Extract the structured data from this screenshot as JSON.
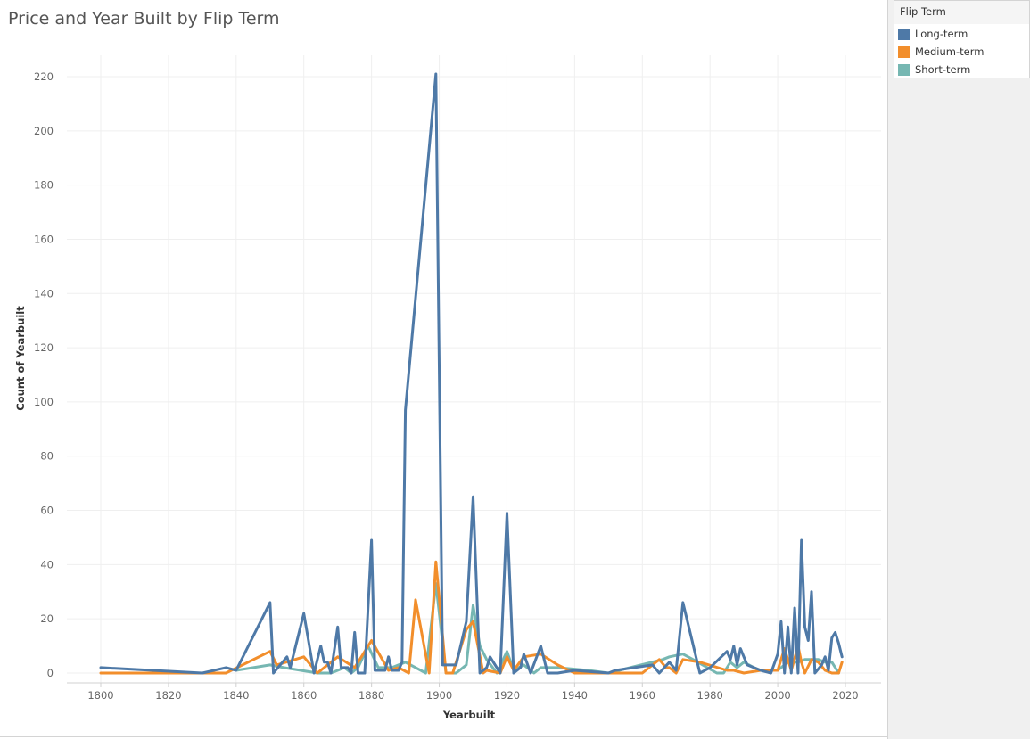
{
  "chart_data": {
    "type": "line",
    "title": "Price and Year Built by Flip Term",
    "xlabel": "Yearbuilt",
    "ylabel": "Count of Yearbuilt",
    "xlim": [
      1788,
      2029
    ],
    "ylim": [
      -3,
      225
    ],
    "xticks": [
      1800,
      1820,
      1840,
      1860,
      1880,
      1900,
      1920,
      1940,
      1960,
      1980,
      2000,
      2020
    ],
    "yticks": [
      0,
      20,
      40,
      60,
      80,
      100,
      120,
      140,
      160,
      180,
      200,
      220
    ],
    "grid": true,
    "legend_title": "Flip Term",
    "legend_position": "right",
    "series": [
      {
        "name": "Long-term",
        "color": "#4e79a7",
        "points": [
          [
            1800,
            2
          ],
          [
            1830,
            0
          ],
          [
            1837,
            2
          ],
          [
            1840,
            1
          ],
          [
            1850,
            26
          ],
          [
            1851,
            0
          ],
          [
            1855,
            6
          ],
          [
            1856,
            2
          ],
          [
            1860,
            22
          ],
          [
            1863,
            0
          ],
          [
            1865,
            10
          ],
          [
            1866,
            4
          ],
          [
            1867,
            4
          ],
          [
            1868,
            0
          ],
          [
            1870,
            17
          ],
          [
            1871,
            2
          ],
          [
            1873,
            2
          ],
          [
            1874,
            0
          ],
          [
            1875,
            15
          ],
          [
            1876,
            0
          ],
          [
            1878,
            0
          ],
          [
            1880,
            49
          ],
          [
            1881,
            1
          ],
          [
            1884,
            1
          ],
          [
            1885,
            6
          ],
          [
            1886,
            1
          ],
          [
            1888,
            1
          ],
          [
            1889,
            4
          ],
          [
            1890,
            97
          ],
          [
            1899,
            221
          ],
          [
            1901,
            3
          ],
          [
            1905,
            3
          ],
          [
            1908,
            19
          ],
          [
            1910,
            65
          ],
          [
            1912,
            0
          ],
          [
            1914,
            2
          ],
          [
            1915,
            6
          ],
          [
            1917,
            2
          ],
          [
            1918,
            0
          ],
          [
            1920,
            59
          ],
          [
            1922,
            0
          ],
          [
            1924,
            2
          ],
          [
            1925,
            7
          ],
          [
            1927,
            0
          ],
          [
            1930,
            10
          ],
          [
            1932,
            0
          ],
          [
            1935,
            0
          ],
          [
            1940,
            1
          ],
          [
            1950,
            0
          ],
          [
            1952,
            1
          ],
          [
            1963,
            3
          ],
          [
            1965,
            0
          ],
          [
            1968,
            4
          ],
          [
            1970,
            1
          ],
          [
            1972,
            26
          ],
          [
            1977,
            0
          ],
          [
            1980,
            2
          ],
          [
            1985,
            8
          ],
          [
            1986,
            5
          ],
          [
            1987,
            10
          ],
          [
            1988,
            3
          ],
          [
            1989,
            9
          ],
          [
            1990,
            6
          ],
          [
            1991,
            3
          ],
          [
            1995,
            1
          ],
          [
            1998,
            0
          ],
          [
            2000,
            7
          ],
          [
            2001,
            19
          ],
          [
            2002,
            0
          ],
          [
            2003,
            17
          ],
          [
            2004,
            0
          ],
          [
            2005,
            24
          ],
          [
            2006,
            0
          ],
          [
            2007,
            49
          ],
          [
            2008,
            17
          ],
          [
            2009,
            12
          ],
          [
            2010,
            30
          ],
          [
            2011,
            0
          ],
          [
            2013,
            3
          ],
          [
            2014,
            6
          ],
          [
            2015,
            1
          ],
          [
            2016,
            13
          ],
          [
            2017,
            15
          ],
          [
            2018,
            11
          ],
          [
            2019,
            6
          ]
        ]
      },
      {
        "name": "Medium-term",
        "color": "#f28e2b",
        "points": [
          [
            1800,
            0
          ],
          [
            1837,
            0
          ],
          [
            1850,
            8
          ],
          [
            1852,
            3
          ],
          [
            1860,
            6
          ],
          [
            1864,
            0
          ],
          [
            1866,
            2
          ],
          [
            1870,
            6
          ],
          [
            1875,
            2
          ],
          [
            1880,
            12
          ],
          [
            1885,
            1
          ],
          [
            1888,
            2
          ],
          [
            1891,
            0
          ],
          [
            1893,
            27
          ],
          [
            1897,
            0
          ],
          [
            1899,
            41
          ],
          [
            1902,
            0
          ],
          [
            1904,
            0
          ],
          [
            1908,
            16
          ],
          [
            1910,
            19
          ],
          [
            1913,
            0
          ],
          [
            1914,
            1
          ],
          [
            1918,
            0
          ],
          [
            1920,
            6
          ],
          [
            1922,
            1
          ],
          [
            1925,
            6
          ],
          [
            1930,
            7
          ],
          [
            1935,
            3
          ],
          [
            1940,
            0
          ],
          [
            1960,
            0
          ],
          [
            1965,
            5
          ],
          [
            1967,
            2
          ],
          [
            1968,
            2
          ],
          [
            1970,
            0
          ],
          [
            1972,
            5
          ],
          [
            1977,
            4
          ],
          [
            1985,
            1
          ],
          [
            1987,
            1
          ],
          [
            1990,
            0
          ],
          [
            1995,
            1
          ],
          [
            2000,
            1
          ],
          [
            2002,
            9
          ],
          [
            2004,
            1
          ],
          [
            2006,
            10
          ],
          [
            2007,
            4
          ],
          [
            2008,
            0
          ],
          [
            2010,
            5
          ],
          [
            2012,
            4
          ],
          [
            2014,
            1
          ],
          [
            2016,
            0
          ],
          [
            2018,
            0
          ],
          [
            2019,
            4
          ]
        ]
      },
      {
        "name": "Short-term",
        "color": "#76b7b2",
        "points": [
          [
            1840,
            1
          ],
          [
            1850,
            3
          ],
          [
            1854,
            2
          ],
          [
            1864,
            0
          ],
          [
            1868,
            0
          ],
          [
            1870,
            1
          ],
          [
            1872,
            2
          ],
          [
            1874,
            0
          ],
          [
            1876,
            2
          ],
          [
            1879,
            10
          ],
          [
            1882,
            2
          ],
          [
            1886,
            2
          ],
          [
            1890,
            4
          ],
          [
            1896,
            0
          ],
          [
            1899,
            33
          ],
          [
            1902,
            0
          ],
          [
            1905,
            0
          ],
          [
            1908,
            3
          ],
          [
            1910,
            25
          ],
          [
            1912,
            10
          ],
          [
            1914,
            5
          ],
          [
            1917,
            0
          ],
          [
            1920,
            8
          ],
          [
            1922,
            1
          ],
          [
            1925,
            3
          ],
          [
            1928,
            0
          ],
          [
            1930,
            2
          ],
          [
            1935,
            2
          ],
          [
            1944,
            1
          ],
          [
            1950,
            0
          ],
          [
            1966,
            5
          ],
          [
            1968,
            6
          ],
          [
            1972,
            7
          ],
          [
            1975,
            5
          ],
          [
            1982,
            0
          ],
          [
            1984,
            0
          ],
          [
            1986,
            4
          ],
          [
            1988,
            2
          ],
          [
            1990,
            4
          ],
          [
            1993,
            2
          ],
          [
            1995,
            1
          ],
          [
            2000,
            1
          ],
          [
            2003,
            4
          ],
          [
            2006,
            4
          ],
          [
            2008,
            5
          ],
          [
            2012,
            5
          ],
          [
            2014,
            4
          ],
          [
            2016,
            4
          ],
          [
            2018,
            0
          ]
        ]
      }
    ]
  }
}
